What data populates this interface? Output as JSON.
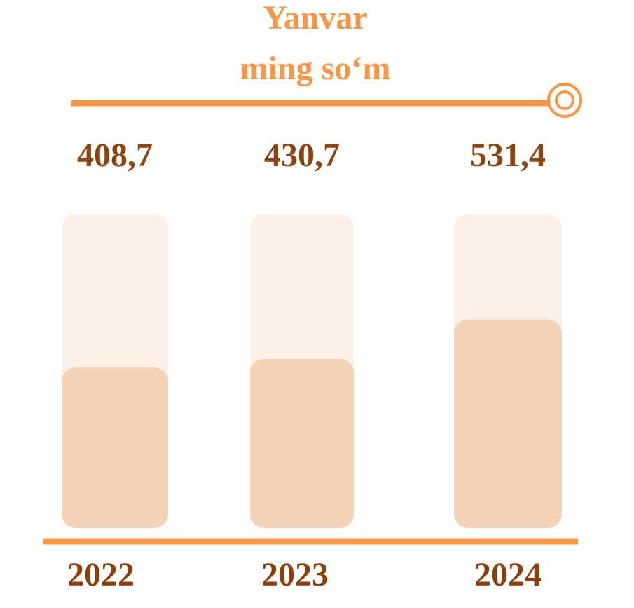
{
  "chart_data": {
    "type": "bar",
    "title": "Yanvar",
    "subtitle": "ming so‘m",
    "categories": [
      "2022",
      "2023",
      "2024"
    ],
    "values": [
      408.7,
      430.7,
      531.4
    ],
    "value_labels": [
      "408,7",
      "430,7",
      "531,4"
    ],
    "color": "#f6d3b6",
    "ylim": [
      0,
      800
    ]
  }
}
